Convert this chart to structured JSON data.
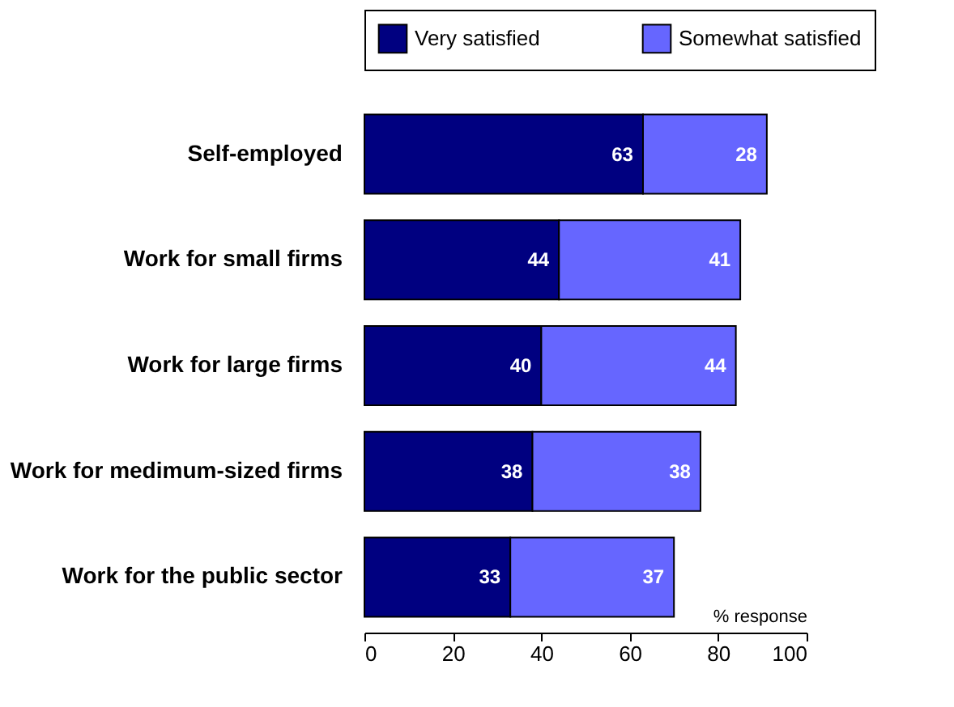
{
  "chart_data": {
    "type": "bar",
    "orientation": "horizontal",
    "stacked": true,
    "data_labels": true,
    "legend": "top",
    "grid": false,
    "xlabel": "% response",
    "categories": [
      "Self-employed",
      "Work for small firms",
      "Work for large firms",
      "Work for medimum-sized firms",
      "Work for the public sector"
    ],
    "series": [
      {
        "name": "Very satisfied",
        "color": "#000080",
        "values": [
          63,
          44,
          40,
          38,
          33
        ]
      },
      {
        "name": "Somewhat satisfied",
        "color": "#6666ff",
        "values": [
          28,
          41,
          44,
          38,
          37
        ]
      }
    ],
    "xlim": [
      0,
      100
    ],
    "xticks": [
      0,
      20,
      40,
      60,
      80,
      100
    ]
  }
}
